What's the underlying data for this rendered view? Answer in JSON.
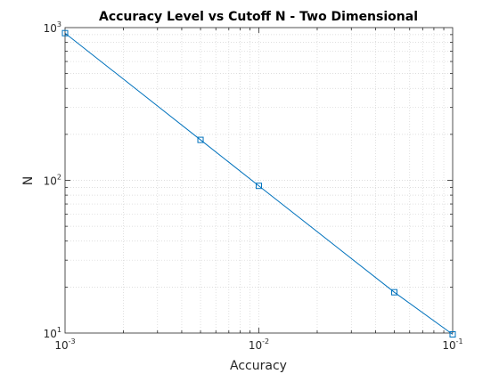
{
  "chart_data": {
    "type": "line",
    "title": "Accuracy Level vs Cutoff N - Two Dimensional",
    "xlabel": "Accuracy",
    "ylabel": "N",
    "x_scale": "log",
    "y_scale": "log",
    "xlim": [
      0.001,
      0.1
    ],
    "ylim": [
      10,
      1000
    ],
    "grid": true,
    "minor_grid": true,
    "legend": "none",
    "x_ticks": [
      {
        "value": 0.001,
        "base": "10",
        "exp": "-3"
      },
      {
        "value": 0.01,
        "base": "10",
        "exp": "-2"
      },
      {
        "value": 0.1,
        "base": "10",
        "exp": "-1"
      }
    ],
    "y_ticks": [
      {
        "value": 10,
        "base": "10",
        "exp": "1"
      },
      {
        "value": 100,
        "base": "10",
        "exp": "2"
      },
      {
        "value": 1000,
        "base": "10",
        "exp": "3"
      }
    ],
    "series": [
      {
        "color": "#0072bd",
        "marker": "square",
        "x": [
          0.001,
          0.005,
          0.01,
          0.05,
          0.1
        ],
        "y": [
          920,
          184,
          92,
          18.5,
          9.8
        ]
      }
    ]
  }
}
